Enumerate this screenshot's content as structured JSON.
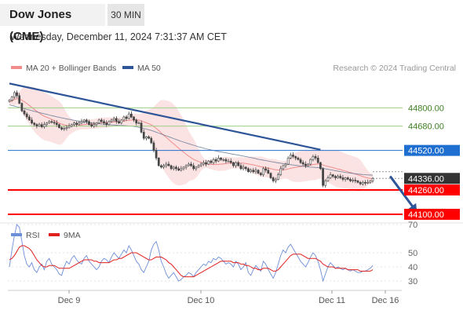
{
  "header": {
    "title": "Dow Jones (CME)",
    "timeframe": "30 MIN",
    "datetime": "Wednesday, December 11, 2024 7:31:37 AM CET"
  },
  "legend": {
    "bollinger": "MA 20 + Bollinger Bands",
    "ma50": "MA 50",
    "credit": "Research © 2024 Trading Central",
    "rsi": "RSI",
    "rsi_ma": "9MA"
  },
  "colors": {
    "candle": "#444444",
    "bollinger": "#f08c8c",
    "bollinger_band": "#fbdada",
    "ma50": "#5b7390",
    "trendline": "#2e5597",
    "target_arrow": "#2e5597",
    "resistance_green": "#9ccf84",
    "pivot_blue": "#1f6fd1",
    "support_red": "#ff0000",
    "last_price": "#333333",
    "rsi": "#6d8ed8",
    "rsi_ma": "#e0201f"
  },
  "chart_data": [
    {
      "type": "candlestick",
      "title": "",
      "y_range": [
        44040,
        44990
      ],
      "x_ticks": [
        "Dec 9",
        "Dec 10",
        "Dec 11",
        "Dec 16"
      ],
      "last_price": 44336.0,
      "levels": [
        {
          "value": 44800.0,
          "label": "44800.00",
          "kind": "resistance"
        },
        {
          "value": 44680.0,
          "label": "44680.00",
          "kind": "resistance"
        },
        {
          "value": 44520.0,
          "label": "44520.00",
          "kind": "pivot"
        },
        {
          "value": 44336.0,
          "label": "44336.00",
          "kind": "last"
        },
        {
          "value": 44260.0,
          "label": "44260.00",
          "kind": "support"
        },
        {
          "value": 44100.0,
          "label": "44100.00",
          "kind": "support"
        }
      ],
      "trendline": {
        "from": [
          0,
          44960
        ],
        "to": [
          125,
          44525
        ]
      },
      "target_arrow": {
        "from": [
          153,
          44350
        ],
        "to": [
          163,
          44130
        ]
      },
      "close": [
        44850,
        44870,
        44900,
        44880,
        44830,
        44780,
        44760,
        44740,
        44720,
        44700,
        44690,
        44680,
        44690,
        44675,
        44690,
        44700,
        44710,
        44705,
        44700,
        44690,
        44670,
        44660,
        44665,
        44670,
        44680,
        44690,
        44700,
        44690,
        44700,
        44710,
        44720,
        44710,
        44690,
        44680,
        44690,
        44700,
        44720,
        44710,
        44700,
        44690,
        44710,
        44720,
        44730,
        44710,
        44700,
        44720,
        44740,
        44730,
        44760,
        44740,
        44720,
        44700,
        44700,
        44640,
        44600,
        44610,
        44600,
        44570,
        44520,
        44470,
        44420,
        44410,
        44420,
        44430,
        44420,
        44400,
        44410,
        44400,
        44390,
        44400,
        44410,
        44420,
        44430,
        44420,
        44400,
        44410,
        44420,
        44430,
        44440,
        44430,
        44450,
        44440,
        44460,
        44450,
        44470,
        44460,
        44460,
        44450,
        44450,
        44440,
        44420,
        44440,
        44420,
        44400,
        44410,
        44400,
        44380,
        44390,
        44380,
        44390,
        44370,
        44360,
        44400,
        44390,
        44370,
        44340,
        44320,
        44330,
        44360,
        44400,
        44420,
        44430,
        44470,
        44490,
        44480,
        44470,
        44460,
        44440,
        44430,
        44420,
        44430,
        44460,
        44480,
        44470,
        44440,
        44400,
        44290,
        44320,
        44340,
        44360,
        44350,
        44340,
        44350,
        44340,
        44330,
        44340,
        44330,
        44320,
        44325,
        44320,
        44310,
        44300,
        44310,
        44305,
        44310,
        44320,
        44336
      ],
      "ma20": [
        44840,
        44845,
        44855,
        44860,
        44858,
        44850,
        44840,
        44828,
        44816,
        44803,
        44790,
        44777,
        44766,
        44754,
        44745,
        44738,
        44732,
        44724,
        44716,
        44708,
        44700,
        44693,
        44688,
        44684,
        44682,
        44681,
        44681,
        44682,
        44684,
        44687,
        44690,
        44692,
        44693,
        44694,
        44695,
        44697,
        44699,
        44701,
        44702,
        44703,
        44704,
        44706,
        44708,
        44709,
        44710,
        44711,
        44713,
        44715,
        44718,
        44720,
        44721,
        44721,
        44720,
        44715,
        44708,
        44702,
        44696,
        44688,
        44678,
        44665,
        44650,
        44635,
        44620,
        44606,
        44592,
        44577,
        44563,
        44549,
        44535,
        44521,
        44508,
        44495,
        44483,
        44472,
        44462,
        44454,
        44447,
        44441,
        44436,
        44432,
        44430,
        44428,
        44427,
        44427,
        44428,
        44430,
        44432,
        44434,
        44436,
        44437,
        44437,
        44438,
        44438,
        44437,
        44436,
        44434,
        44431,
        44428,
        44425,
        44421,
        44417,
        44413,
        44410,
        44407,
        44404,
        44400,
        44396,
        44393,
        44391,
        44391,
        44392,
        44394,
        44398,
        44402,
        44406,
        44409,
        44412,
        44414,
        44416,
        44418,
        44420,
        44423,
        44427,
        44430,
        44432,
        44431,
        44424,
        44419,
        44415,
        44411,
        44407,
        44402,
        44398,
        44394,
        44389,
        44385,
        44380,
        44375,
        44370,
        44365,
        44360,
        44354,
        44348,
        44343,
        44339,
        44336,
        44334
      ],
      "ma50": [
        44820,
        44815,
        44811,
        44807,
        44803,
        44799,
        44795,
        44790,
        44786,
        44782,
        44777,
        44773,
        44769,
        44765,
        44761,
        44757,
        44753,
        44749,
        44745,
        44741,
        44738,
        44734,
        44731,
        44727,
        44724,
        44721,
        44718,
        44715,
        44712,
        44710,
        44707,
        44705,
        44703,
        44701,
        44699,
        44697,
        44695,
        44693,
        44692,
        44690,
        44689,
        44688,
        44687,
        44686,
        44685,
        44684,
        44683,
        44682,
        44681,
        44680,
        44678,
        44675,
        44672,
        44668,
        44664,
        44660,
        44656,
        44651,
        44646,
        44640,
        44634,
        44628,
        44622,
        44616,
        44610,
        44604,
        44598,
        44592,
        44586,
        44580,
        44575,
        44569,
        44564,
        44559,
        44554,
        44549,
        44544,
        44540,
        44535,
        44531,
        44527,
        44523,
        44520,
        44516,
        44513,
        44510,
        44507,
        44504,
        44501,
        44498,
        44495,
        44492,
        44489,
        44486,
        44483,
        44480,
        44476,
        44473,
        44470,
        44466,
        44462,
        44459,
        44456,
        44453,
        44450,
        44447,
        44444,
        44441,
        44438,
        44436,
        44433,
        44431,
        44428,
        44426,
        44424,
        44422,
        44420,
        44418,
        44416,
        44414,
        44412,
        44410,
        44409,
        44408,
        44407,
        44405,
        44402,
        44399,
        44396,
        44393,
        44390,
        44387,
        44384,
        44381,
        44378,
        44375,
        44373,
        44371,
        44369,
        44367,
        44365,
        44363,
        44361,
        44360,
        44359,
        44358,
        44357
      ]
    },
    {
      "type": "line",
      "title": "RSI",
      "y_range": [
        20,
        80
      ],
      "y_ticks": [
        70,
        50,
        40,
        30
      ],
      "series": [
        {
          "name": "RSI",
          "values": [
            40,
            52,
            62,
            70,
            68,
            58,
            48,
            42,
            40,
            43,
            38,
            36,
            40,
            42,
            38,
            44,
            46,
            42,
            40,
            38,
            35,
            34,
            40,
            44,
            42,
            46,
            48,
            45,
            43,
            42,
            46,
            48,
            44,
            42,
            40,
            38,
            40,
            44,
            46,
            45,
            43,
            47,
            50,
            48,
            46,
            49,
            52,
            50,
            55,
            52,
            48,
            44,
            42,
            38,
            36,
            40,
            44,
            52,
            56,
            58,
            52,
            44,
            40,
            35,
            32,
            34,
            36,
            33,
            30,
            31,
            33,
            34,
            36,
            35,
            33,
            36,
            38,
            40,
            42,
            41,
            44,
            43,
            46,
            45,
            47,
            46,
            44,
            42,
            43,
            42,
            40,
            44,
            42,
            38,
            40,
            43,
            36,
            34,
            38,
            41,
            39,
            37,
            44,
            42,
            38,
            35,
            32,
            36,
            42,
            48,
            52,
            50,
            54,
            56,
            53,
            50,
            47,
            44,
            42,
            40,
            43,
            47,
            50,
            48,
            44,
            38,
            30,
            35,
            40,
            43,
            41,
            39,
            40,
            39,
            38,
            39,
            38,
            37,
            38,
            37,
            36,
            36,
            37,
            37,
            38,
            39,
            41
          ]
        },
        {
          "name": "9MA",
          "values": [
            45,
            46,
            48,
            51,
            54,
            55,
            55,
            54,
            53,
            51,
            48,
            45,
            43,
            41,
            40,
            40,
            41,
            41,
            41,
            40,
            39,
            39,
            39,
            39,
            39,
            40,
            41,
            42,
            43,
            44,
            45,
            45,
            45,
            45,
            44,
            44,
            43,
            43,
            43,
            43,
            43,
            44,
            45,
            45,
            46,
            46,
            47,
            48,
            49,
            50,
            50,
            50,
            49,
            48,
            47,
            46,
            45,
            45,
            46,
            47,
            47,
            47,
            46,
            45,
            43,
            42,
            40,
            38,
            36,
            34,
            33,
            33,
            33,
            33,
            33,
            34,
            35,
            36,
            37,
            38,
            39,
            40,
            41,
            42,
            43,
            44,
            44,
            44,
            44,
            44,
            43,
            43,
            43,
            42,
            42,
            41,
            41,
            40,
            39,
            39,
            38,
            38,
            39,
            39,
            39,
            38,
            37,
            37,
            38,
            40,
            42,
            44,
            46,
            48,
            49,
            49,
            49,
            49,
            48,
            47,
            46,
            46,
            46,
            46,
            45,
            44,
            42,
            41,
            40,
            40,
            40,
            39,
            39,
            39,
            39,
            39,
            38,
            38,
            38,
            38,
            38,
            37,
            37,
            37,
            37,
            37,
            38
          ]
        }
      ]
    }
  ]
}
